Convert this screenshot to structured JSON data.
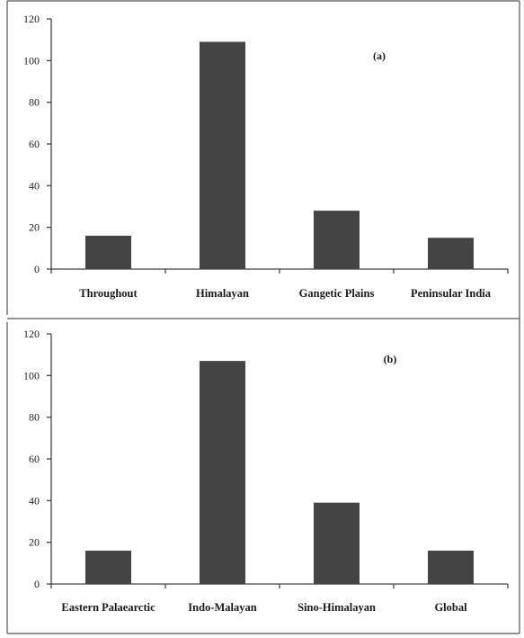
{
  "chart_data": [
    {
      "type": "bar",
      "panel_label": "(a)",
      "categories": [
        "Throughout",
        "Himalayan",
        "Gangetic Plains",
        "Peninsular India"
      ],
      "values": [
        16,
        109,
        28,
        15
      ],
      "ylim": [
        0,
        120
      ],
      "yticks": [
        0,
        20,
        40,
        60,
        80,
        100,
        120
      ],
      "ytick_labels": [
        "0",
        "20",
        "40",
        "60",
        "80",
        "100",
        "120"
      ],
      "bar_color": "#444444",
      "grid": false
    },
    {
      "type": "bar",
      "panel_label": "(b)",
      "categories": [
        "Eastern Palaearctic",
        "Indo-Malayan",
        "Sino-Himalayan",
        "Global"
      ],
      "values": [
        16,
        107,
        39,
        16
      ],
      "ylim": [
        0,
        120
      ],
      "yticks": [
        0,
        20,
        40,
        60,
        80,
        100,
        120
      ],
      "ytick_labels": [
        "0",
        "20",
        "40",
        "60",
        "80",
        "100",
        "120"
      ],
      "bar_color": "#444444",
      "grid": false
    }
  ]
}
